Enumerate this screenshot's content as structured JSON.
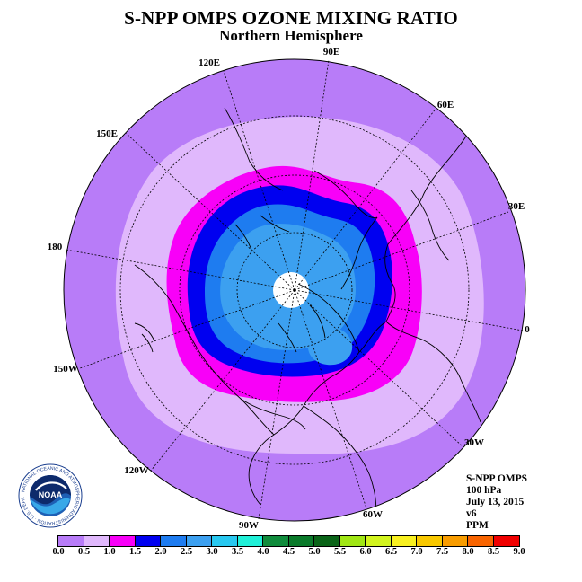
{
  "header": {
    "title": "S-NPP OMPS OZONE MIXING RATIO",
    "subtitle": "Northern Hemisphere"
  },
  "map": {
    "projection": "north-polar-stereographic",
    "longitude_labels": [
      "90E",
      "60E",
      "30E",
      "0",
      "30W",
      "60W",
      "90W",
      "120W",
      "150W",
      "180",
      "150E",
      "120E"
    ],
    "colors": {
      "outer": "#b87cf8",
      "lavender": "#e0b8fc",
      "magenta": "#f800f8",
      "blue": "#0000f0",
      "med_blue": "#1e7cf0",
      "light_blue": "#3ca0f0",
      "pole": "#ffffff"
    }
  },
  "info": {
    "instrument": "S-NPP OMPS",
    "level": "100 hPa",
    "date": "July 13, 2015",
    "version": "v6",
    "units": "PPM"
  },
  "logo": {
    "text": "NOAA",
    "ring_text": "NATIONAL OCEANIC AND ATMOSPHERIC ADMINISTRATION · U.S. DEPARTMENT OF COMMERCE"
  },
  "legend": {
    "ticks": [
      "0.0",
      "0.5",
      "1.0",
      "1.5",
      "2.0",
      "2.5",
      "3.0",
      "3.5",
      "4.0",
      "4.5",
      "5.0",
      "5.5",
      "6.0",
      "6.5",
      "7.0",
      "7.5",
      "8.0",
      "8.5",
      "9.0"
    ],
    "colors": [
      "#b87cf8",
      "#e0b8fc",
      "#f800f8",
      "#0000f0",
      "#1e7cf0",
      "#3ca0f0",
      "#28c8f0",
      "#20f0d8",
      "#108c3c",
      "#0a7a2a",
      "#0a6418",
      "#a0e614",
      "#d2f41e",
      "#f8f020",
      "#f8c800",
      "#f89c00",
      "#f86400",
      "#f00000",
      "#8c5a3c"
    ]
  }
}
